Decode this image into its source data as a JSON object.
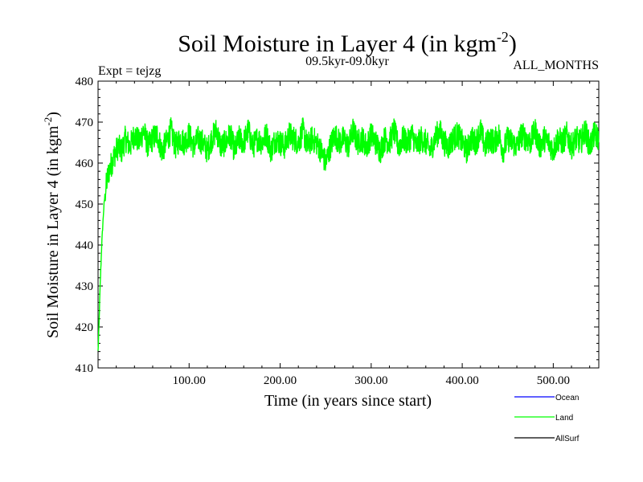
{
  "chart_data": {
    "type": "line",
    "title_main": "Soil Moisture in Layer 4 (in kgm",
    "title_sup": "-2",
    "title_end": ")",
    "expt_label": "Expt = tejzg",
    "period_label": "09.5kyr-09.0kyr",
    "months_label": "ALL_MONTHS",
    "xlabel": "Time (in years since start)",
    "ylabel_main": "Soil Moisture in Layer 4 (in kgm",
    "ylabel_sup": "-2",
    "ylabel_end": ")",
    "xlim": [
      0,
      550
    ],
    "ylim": [
      410,
      480
    ],
    "x_ticks": [
      100,
      200,
      300,
      400,
      500
    ],
    "x_tick_labels": [
      "100.00",
      "200.00",
      "300.00",
      "400.00",
      "500.00"
    ],
    "y_ticks": [
      410,
      420,
      430,
      440,
      450,
      460,
      470,
      480
    ],
    "y_tick_labels": [
      "410",
      "420",
      "430",
      "440",
      "450",
      "460",
      "470",
      "480"
    ],
    "grid": false,
    "legend_position": "bottom-right",
    "series": [
      {
        "name": "Ocean",
        "color": "#0000ff",
        "x": [],
        "y": []
      },
      {
        "name": "Land",
        "color": "#00ff00",
        "x": [
          0,
          1,
          2,
          3,
          4,
          5,
          6,
          7,
          8,
          10,
          12,
          15,
          18,
          22,
          26,
          30,
          35,
          40,
          45,
          50,
          55,
          60,
          65,
          70,
          75,
          80,
          85,
          90,
          95,
          100,
          105,
          110,
          115,
          120,
          125,
          130,
          135,
          140,
          145,
          150,
          155,
          160,
          165,
          170,
          175,
          180,
          185,
          190,
          195,
          200,
          205,
          210,
          215,
          220,
          225,
          230,
          235,
          240,
          245,
          250,
          255,
          260,
          265,
          270,
          275,
          280,
          285,
          290,
          295,
          300,
          305,
          310,
          315,
          320,
          325,
          330,
          335,
          340,
          345,
          350,
          355,
          360,
          365,
          370,
          375,
          380,
          385,
          390,
          395,
          400,
          405,
          410,
          415,
          420,
          425,
          430,
          435,
          440,
          445,
          450,
          455,
          460,
          465,
          470,
          475,
          480,
          485,
          490,
          495,
          500,
          505,
          510,
          515,
          520,
          525,
          530,
          535,
          540,
          545,
          550
        ],
        "y": [
          414,
          420,
          428,
          434,
          440,
          444,
          448,
          451,
          453,
          456,
          458,
          460,
          462,
          464,
          463,
          466,
          464,
          467,
          465,
          468,
          464,
          466,
          467,
          463,
          465,
          468,
          464,
          466,
          465,
          467,
          464,
          466,
          465,
          463,
          466,
          468,
          464,
          465,
          467,
          463,
          466,
          465,
          468,
          464,
          466,
          465,
          467,
          463,
          466,
          465,
          464,
          467,
          466,
          465,
          468,
          464,
          466,
          465,
          463,
          460,
          464,
          467,
          465,
          466,
          464,
          468,
          465,
          466,
          464,
          467,
          465,
          463,
          466,
          465,
          468,
          464,
          466,
          465,
          467,
          464,
          466,
          465,
          463,
          466,
          468,
          465,
          464,
          466,
          467,
          465,
          463,
          466,
          465,
          468,
          464,
          466,
          465,
          467,
          463,
          466,
          465,
          464,
          467,
          466,
          465,
          468,
          464,
          466,
          465,
          463,
          466,
          465,
          467,
          464,
          466,
          465,
          468,
          464,
          467,
          466
        ]
      },
      {
        "name": "AllSurf",
        "color": "#000000",
        "x": [],
        "y": []
      }
    ]
  }
}
